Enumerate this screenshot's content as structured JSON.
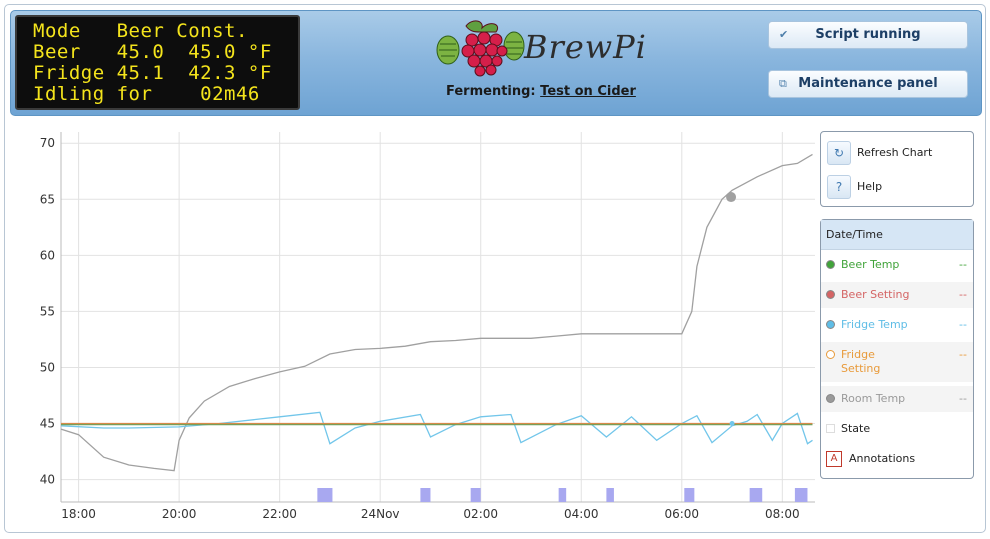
{
  "lcd": {
    "lines": [
      "Mode   Beer Const.",
      "Beer   45.0  45.0 °F",
      "Fridge 45.1  42.3 °F",
      "Idling for    02m46"
    ]
  },
  "brand": {
    "name": "BrewPi"
  },
  "fermenting": {
    "label": "Fermenting:",
    "beer_name": "Test on Cider"
  },
  "buttons": {
    "script_running": "Script running",
    "maintenance": "Maintenance panel",
    "refresh_chart": "Refresh Chart",
    "help": "Help"
  },
  "legend": {
    "header": "Date/Time",
    "items": [
      {
        "label": "Beer Temp",
        "value": "--",
        "color": "#41a33a",
        "style": "filled"
      },
      {
        "label": "Beer Setting",
        "value": "--",
        "color": "#d46464",
        "style": "filled"
      },
      {
        "label": "Fridge Temp",
        "value": "--",
        "color": "#5fbde6",
        "style": "filled"
      },
      {
        "label": "Fridge Setting",
        "value": "--",
        "color": "#e89a3a",
        "style": "hollow"
      },
      {
        "label": "Room Temp",
        "value": "--",
        "color": "#9a9a9a",
        "style": "filled"
      },
      {
        "label": "State",
        "value": "",
        "color": "#ffffff",
        "style": "square"
      },
      {
        "label": "Annotations",
        "value": "",
        "color": "#c0392b",
        "style": "letter",
        "letter": "A"
      }
    ]
  },
  "chart_data": {
    "type": "line",
    "x_ticks": [
      "18:00",
      "20:00",
      "22:00",
      "24Nov",
      "02:00",
      "04:00",
      "06:00",
      "08:00"
    ],
    "x_tick_hours": [
      0,
      2,
      4,
      6,
      8,
      10,
      12,
      14
    ],
    "x_range_hours": [
      -0.35,
      14.65
    ],
    "ylim": [
      38,
      71
    ],
    "y_ticks": [
      40,
      45,
      50,
      55,
      60,
      65,
      70
    ],
    "series": [
      {
        "name": "Room Temp",
        "color": "#a0a0a0",
        "x": [
          -0.35,
          0.0,
          0.5,
          1.0,
          1.5,
          1.9,
          2.0,
          2.2,
          2.5,
          3.0,
          3.5,
          4.0,
          4.5,
          5.0,
          5.5,
          6.0,
          6.5,
          7.0,
          7.5,
          8.0,
          8.5,
          9.0,
          9.5,
          10.0,
          10.5,
          11.0,
          11.5,
          12.0,
          12.2,
          12.3,
          12.5,
          12.8,
          13.0,
          13.5,
          14.0,
          14.3,
          14.6
        ],
        "y": [
          44.5,
          44.0,
          42.0,
          41.3,
          41.0,
          40.8,
          43.5,
          45.5,
          47.0,
          48.3,
          49.0,
          49.6,
          50.1,
          51.2,
          51.6,
          51.7,
          51.9,
          52.3,
          52.4,
          52.6,
          52.6,
          52.6,
          52.8,
          53.0,
          53.0,
          53.0,
          53.0,
          53.0,
          55.0,
          59.0,
          62.5,
          65.0,
          65.8,
          67.0,
          68.0,
          68.2,
          69.0
        ]
      },
      {
        "name": "Fridge Temp",
        "color": "#72c6ea",
        "x": [
          -0.35,
          0.5,
          1.0,
          2.0,
          2.8,
          4.0,
          4.8,
          5.0,
          5.5,
          6.0,
          6.8,
          7.0,
          7.5,
          8.0,
          8.6,
          8.8,
          9.5,
          10.0,
          10.5,
          11.0,
          11.5,
          12.0,
          12.3,
          12.6,
          13.0,
          13.3,
          13.5,
          13.8,
          14.0,
          14.3,
          14.5,
          14.6
        ],
        "y": [
          44.8,
          44.6,
          44.6,
          44.7,
          45.0,
          45.6,
          46.0,
          43.2,
          44.6,
          45.2,
          45.8,
          43.8,
          44.9,
          45.6,
          45.8,
          43.3,
          44.9,
          45.7,
          43.8,
          45.6,
          43.5,
          45.0,
          45.7,
          43.3,
          44.8,
          45.2,
          45.8,
          43.5,
          45.0,
          45.9,
          43.2,
          43.5
        ]
      },
      {
        "name": "Beer Temp",
        "color": "#6ca05a",
        "x": [
          -0.35,
          14.6
        ],
        "y": [
          44.9,
          44.9
        ]
      },
      {
        "name": "Beer Setting",
        "color": "#d88a4a",
        "x": [
          -0.35,
          14.6
        ],
        "y": [
          45.0,
          45.0
        ]
      }
    ],
    "state_bars": [
      {
        "start": 4.75,
        "end": 5.05
      },
      {
        "start": 6.8,
        "end": 7.0
      },
      {
        "start": 7.8,
        "end": 8.0
      },
      {
        "start": 9.55,
        "end": 9.7
      },
      {
        "start": 10.5,
        "end": 10.65
      },
      {
        "start": 12.05,
        "end": 12.25
      },
      {
        "start": 13.35,
        "end": 13.6
      },
      {
        "start": 14.25,
        "end": 14.5
      }
    ],
    "markers": [
      {
        "series": "Room Temp",
        "x": 12.98,
        "y": 65.2
      },
      {
        "series": "Fridge Temp",
        "x": 13.0,
        "y": 45.0
      }
    ]
  }
}
